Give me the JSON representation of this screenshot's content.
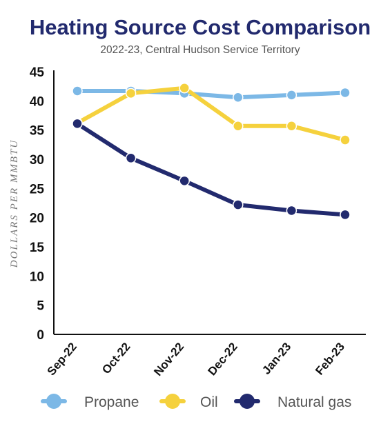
{
  "chart_data": {
    "type": "line",
    "title": "Heating Source Cost Comparison",
    "subtitle": "2022-23, Central Hudson Service Territory",
    "ylabel": "DOLLARS PER MMBTU",
    "xlabel": "",
    "categories": [
      "Sep-22",
      "Oct-22",
      "Nov-22",
      "Dec-22",
      "Jan-23",
      "Feb-23"
    ],
    "ylim": [
      0,
      45
    ],
    "yticks": [
      0,
      5,
      10,
      15,
      20,
      25,
      30,
      35,
      40,
      45
    ],
    "grid": false,
    "legend_position": "bottom",
    "series": [
      {
        "name": "Propane",
        "color": "#7cb8e6",
        "values": [
          41.7,
          41.7,
          41.3,
          40.6,
          41.0,
          41.4
        ]
      },
      {
        "name": "Oil",
        "color": "#f5d13d",
        "values": [
          36.2,
          41.3,
          42.2,
          35.7,
          35.7,
          33.3
        ]
      },
      {
        "name": "Natural gas",
        "color": "#222a6e",
        "values": [
          36.1,
          30.2,
          26.3,
          22.2,
          21.2,
          20.5
        ]
      }
    ]
  }
}
